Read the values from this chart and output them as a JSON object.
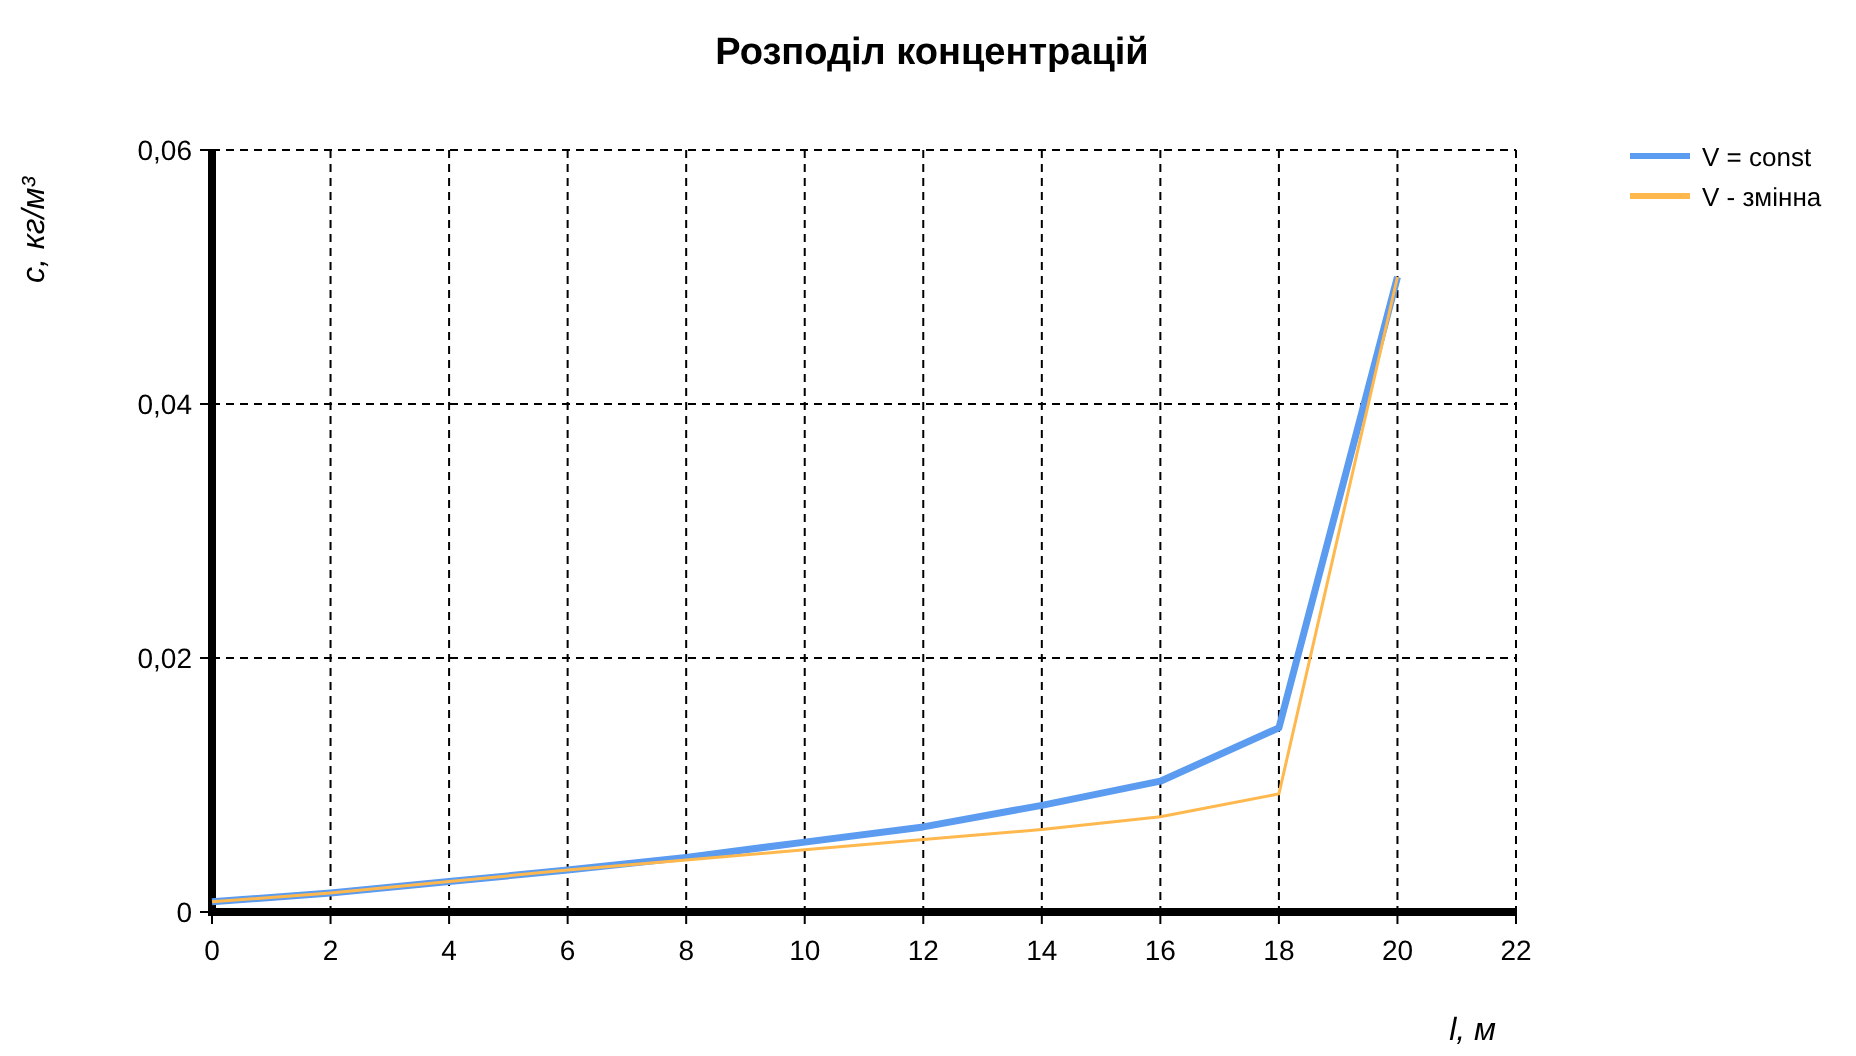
{
  "chart_data": {
    "type": "line",
    "title": "Розподіл концентрацій",
    "xlabel": "l, м",
    "ylabel": "c, кг/м³",
    "x": [
      0,
      2,
      4,
      6,
      8,
      10,
      12,
      14,
      16,
      18,
      20
    ],
    "series": [
      {
        "name": "V = const",
        "color": "#5b9bf0",
        "values": [
          0.0008,
          0.0015,
          0.0024,
          0.0033,
          0.0043,
          0.0055,
          0.0067,
          0.0084,
          0.0103,
          0.0145,
          0.05
        ]
      },
      {
        "name": "V - змінна",
        "color": "#ffb84d",
        "values": [
          0.0008,
          0.0015,
          0.0024,
          0.0033,
          0.0041,
          0.0049,
          0.0057,
          0.0065,
          0.0075,
          0.0093,
          0.05
        ]
      }
    ],
    "xlim": [
      0,
      22
    ],
    "xticks": [
      0,
      2,
      4,
      6,
      8,
      10,
      12,
      14,
      16,
      18,
      20,
      22
    ],
    "ylim": [
      0,
      0.06
    ],
    "yticks": [
      {
        "value": 0,
        "label": "0"
      },
      {
        "value": 0.02,
        "label": "0,02"
      },
      {
        "value": 0.04,
        "label": "0,04"
      },
      {
        "value": 0.06,
        "label": "0,06"
      }
    ],
    "grid": true,
    "legend": "top right",
    "marker": "none",
    "line_style": "solid"
  }
}
